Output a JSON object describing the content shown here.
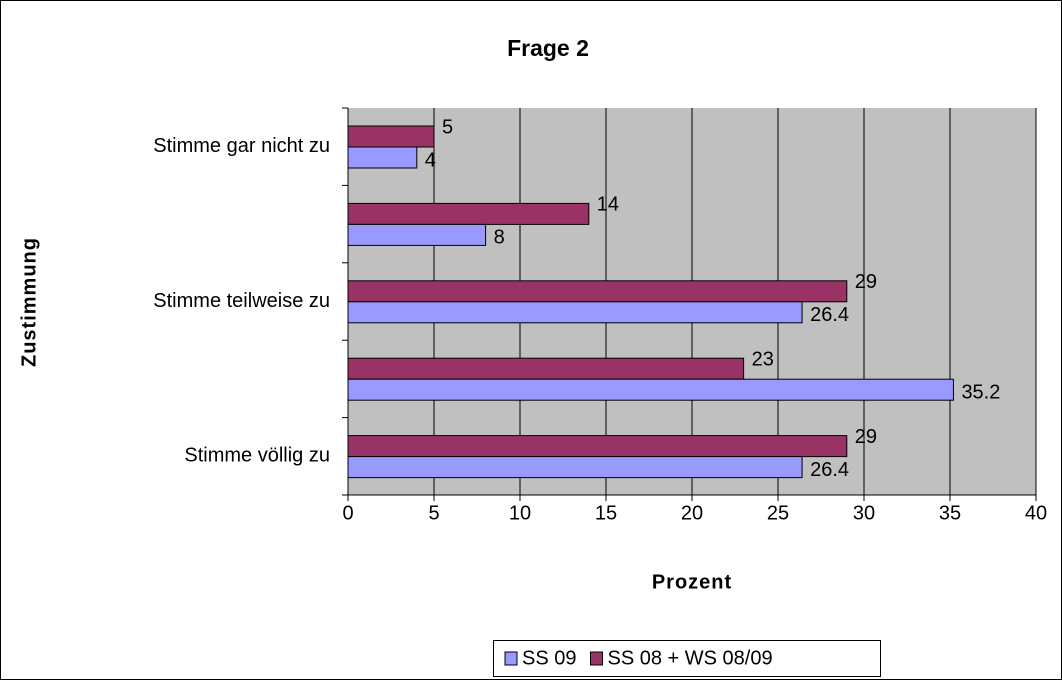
{
  "chart_data": {
    "type": "bar",
    "orientation": "horizontal",
    "title": "Frage 2",
    "x_label": "Prozent",
    "y_label": "Zustimmung",
    "categories": [
      "Stimme gar nicht zu",
      null,
      "Stimme teilweise zu",
      null,
      "Stimme völlig zu"
    ],
    "series": [
      {
        "name": "SS 09",
        "color": "#9999ff",
        "values": [
          4,
          8,
          26.4,
          35.2,
          26.4
        ]
      },
      {
        "name": "SS 08 + WS 08/09",
        "color": "#993366",
        "values": [
          5,
          14,
          29,
          23,
          29
        ]
      }
    ],
    "xlim": [
      0,
      40
    ],
    "xticks": [
      0,
      5,
      10,
      15,
      20,
      25,
      30,
      35,
      40
    ],
    "grid": true,
    "plot_background": "#c0c0c0",
    "legend": "bottom"
  }
}
